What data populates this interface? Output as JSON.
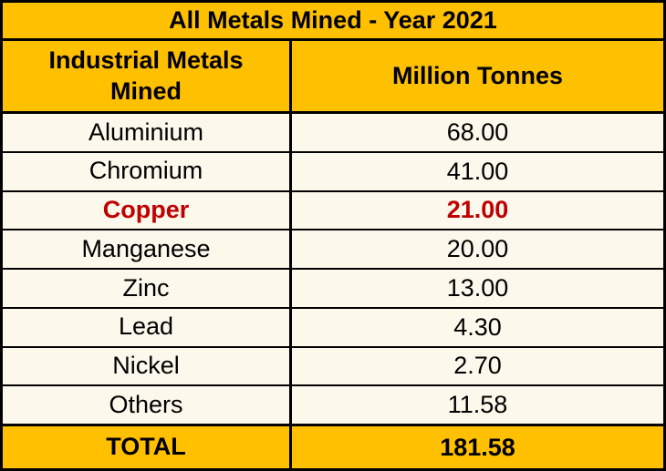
{
  "title": "All Metals Mined - Year 2021",
  "colors": {
    "header_bg": "#FFC000",
    "body_bg": "#FCF8EC",
    "border": "#000000",
    "highlight_text": "#C00000"
  },
  "table": {
    "col1_header": "Industrial Metals Mined",
    "col2_header": "Million Tonnes",
    "rows": [
      {
        "metal": "Aluminium",
        "tonnes": "68.00"
      },
      {
        "metal": "Chromium",
        "tonnes": "41.00"
      },
      {
        "metal": "Copper",
        "tonnes": "21.00"
      },
      {
        "metal": "Manganese",
        "tonnes": "20.00"
      },
      {
        "metal": "Zinc",
        "tonnes": "13.00"
      },
      {
        "metal": "Lead",
        "tonnes": "4.30"
      },
      {
        "metal": "Nickel",
        "tonnes": "2.70"
      },
      {
        "metal": "Others",
        "tonnes": "11.58"
      }
    ],
    "total_label": "TOTAL",
    "total_value": "181.58"
  },
  "chart_data": {
    "type": "table",
    "title": "All Metals Mined - Year 2021",
    "columns": [
      "Industrial Metals Mined",
      "Million Tonnes"
    ],
    "categories": [
      "Aluminium",
      "Chromium",
      "Copper",
      "Manganese",
      "Zinc",
      "Lead",
      "Nickel",
      "Others"
    ],
    "values": [
      68.0,
      41.0,
      21.0,
      20.0,
      13.0,
      4.3,
      2.7,
      11.58
    ],
    "highlighted_category": "Copper",
    "total_label": "TOTAL",
    "total": 181.58,
    "units": "Million Tonnes",
    "year": 2021
  }
}
